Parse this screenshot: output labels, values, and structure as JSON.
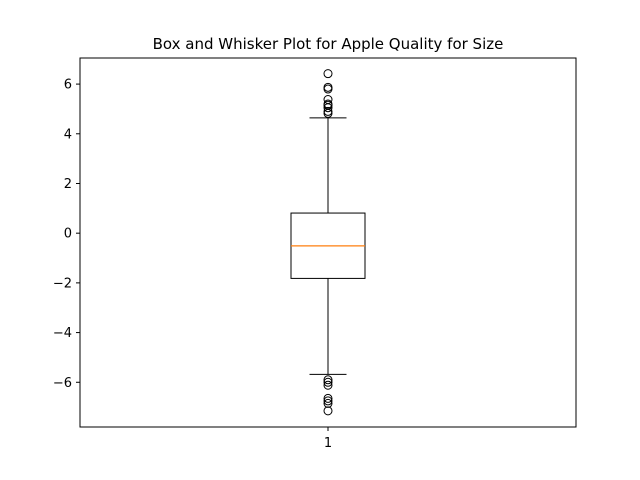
{
  "chart_data": {
    "type": "box",
    "title": "Box and Whisker Plot for Apple Quality for Size",
    "xlabel": "",
    "ylabel": "",
    "categories": [
      "1"
    ],
    "ylim": [
      -7.8,
      7.05
    ],
    "yticks": [
      -6,
      -4,
      -2,
      0,
      2,
      4,
      6
    ],
    "ytick_labels": [
      "−6",
      "−4",
      "−2",
      "0",
      "2",
      "4",
      "6"
    ],
    "boxes": [
      {
        "label": "1",
        "median": -0.51,
        "q1": -1.82,
        "q3": 0.81,
        "whisker_low": -5.68,
        "whisker_high": 4.64,
        "outliers_high": [
          4.82,
          4.9,
          5.05,
          5.15,
          5.2,
          5.38,
          5.8,
          5.87,
          6.42
        ],
        "outliers_low": [
          -5.9,
          -6.0,
          -6.12,
          -6.65,
          -6.75,
          -6.85,
          -7.15
        ]
      }
    ],
    "grid": false,
    "colors": {
      "box": "#000000",
      "median": "#ff7f0e",
      "outlier": "#000000"
    }
  }
}
